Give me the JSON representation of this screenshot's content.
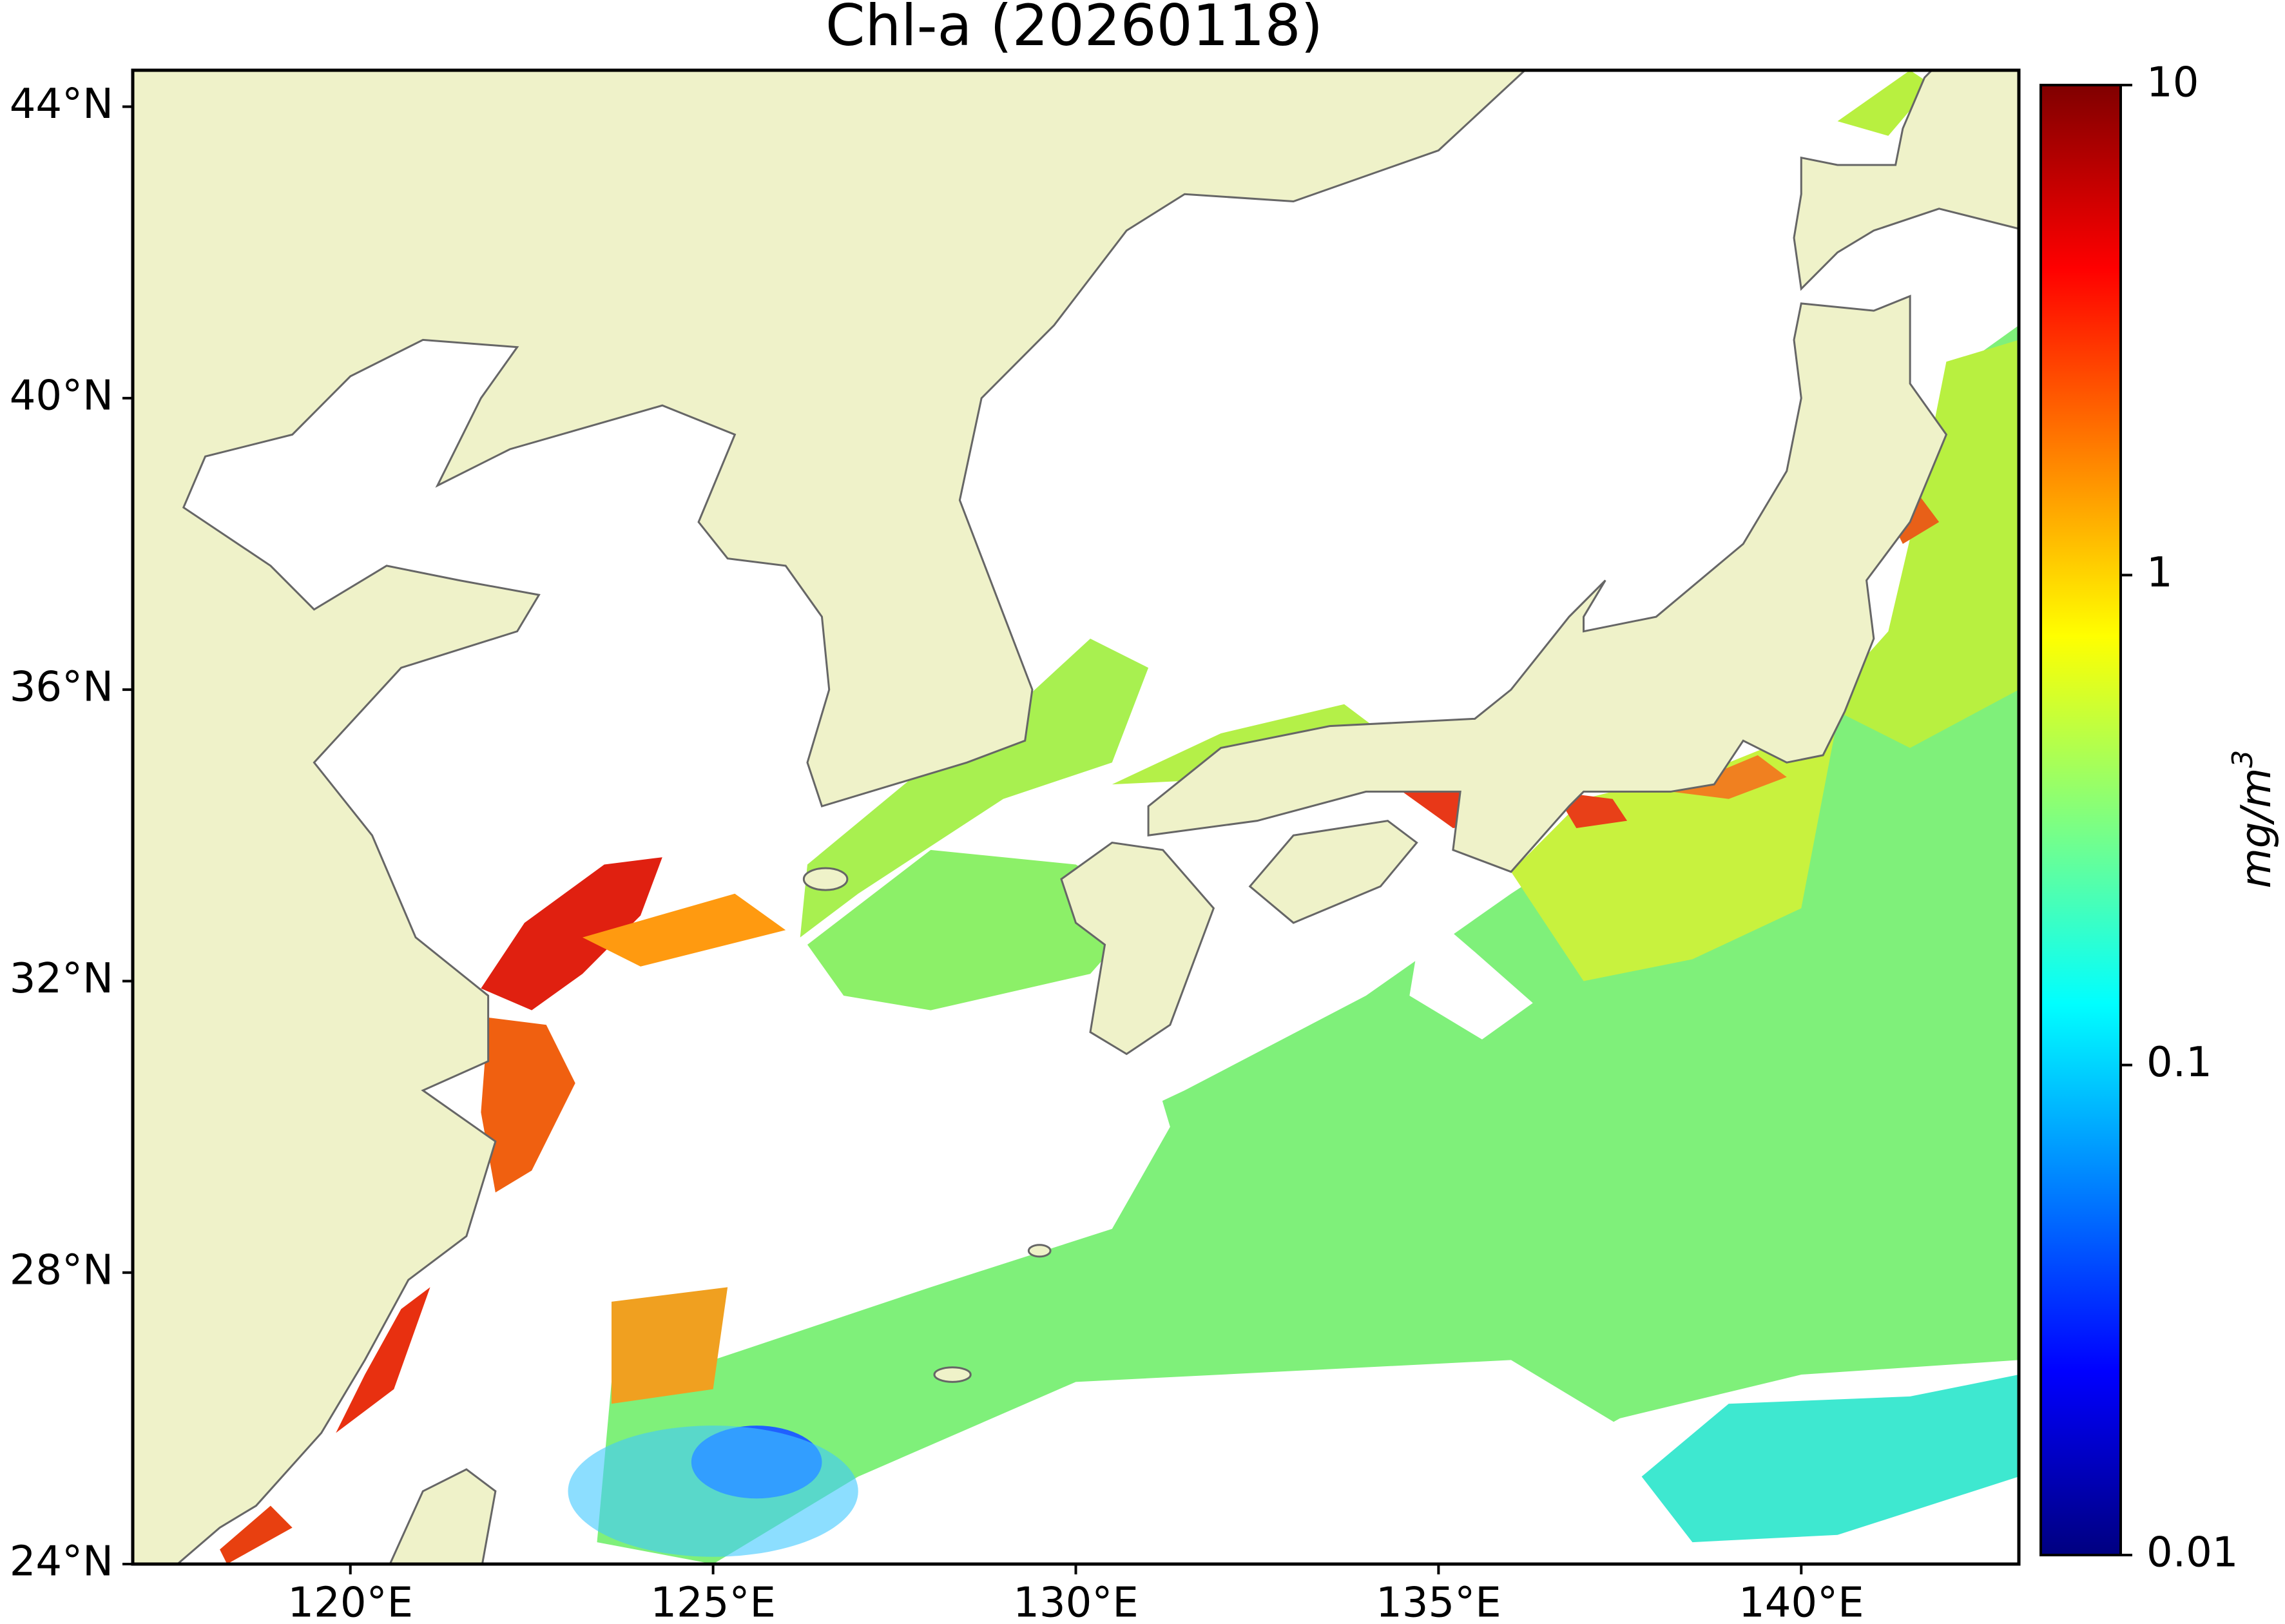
{
  "chart_data": {
    "type": "map",
    "title": "Chl-a (20260118)",
    "xlim": [
      117,
      143
    ],
    "ylim": [
      24,
      44.5
    ],
    "xticks": [
      {
        "value": 120,
        "label": "120°E"
      },
      {
        "value": 125,
        "label": "125°E"
      },
      {
        "value": 130,
        "label": "130°E"
      },
      {
        "value": 135,
        "label": "135°E"
      },
      {
        "value": 140,
        "label": "140°E"
      }
    ],
    "yticks": [
      {
        "value": 24,
        "label": "24°N"
      },
      {
        "value": 28,
        "label": "28°N"
      },
      {
        "value": 32,
        "label": "32°N"
      },
      {
        "value": 36,
        "label": "36°N"
      },
      {
        "value": 40,
        "label": "40°N"
      },
      {
        "value": 44,
        "label": "44°N"
      }
    ],
    "land_color": "#eff2c9",
    "coast_color": "#666666",
    "colorbar": {
      "colormap": "jet",
      "scale": "log",
      "lim": [
        0.01,
        10
      ],
      "ticks": [
        0.01,
        0.1,
        1,
        10
      ],
      "label": "mg/m",
      "label_superscript": "3"
    }
  }
}
